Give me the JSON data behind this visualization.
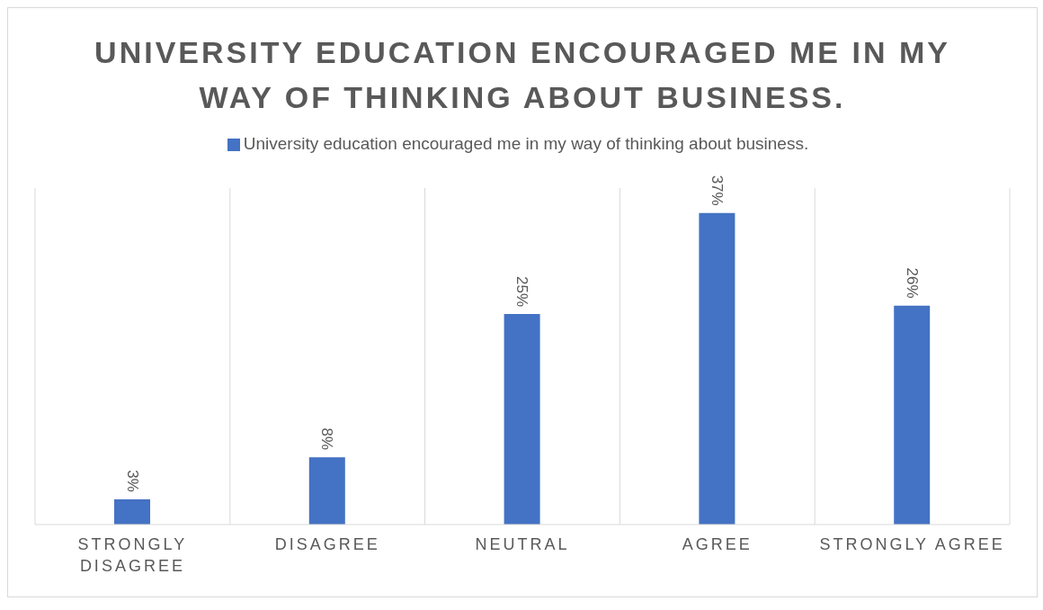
{
  "chart_data": {
    "type": "bar",
    "title": "UNIVERSITY EDUCATION ENCOURAGED ME IN MY WAY OF THINKING ABOUT BUSINESS.",
    "categories": [
      "STRONGLY DISAGREE",
      "DISAGREE",
      "NEUTRAL",
      "AGREE",
      "STRONGLY AGREE"
    ],
    "series": [
      {
        "name": "University education encouraged me in my way of thinking about business.",
        "color": "#4472c4",
        "values": [
          3,
          8,
          25,
          37,
          26
        ],
        "value_labels": [
          "3%",
          "8%",
          "25%",
          "37%",
          "26%"
        ]
      }
    ],
    "grid": "x",
    "legend": "top"
  }
}
